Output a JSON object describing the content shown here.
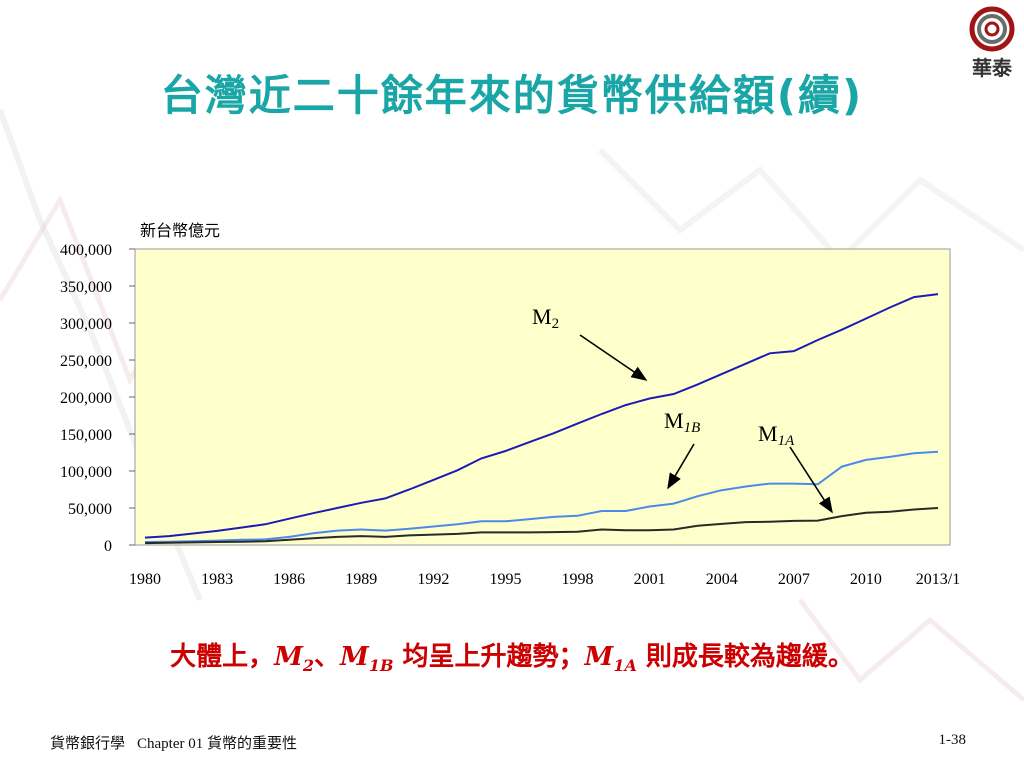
{
  "slide": {
    "title": "台灣近二十餘年來的貨幣供給額(續)",
    "logo_text": "華泰",
    "caption": {
      "part1": "大體上，",
      "m2": "M",
      "m2_sub": "2",
      "sep": "、",
      "m1b": "M",
      "m1b_sub": "1B",
      "part2": " 均呈上升趨勢；",
      "m1a": "M",
      "m1a_sub": "1A",
      "part3": " 則成長較為趨緩。"
    },
    "footer": {
      "book": "貨幣銀行學",
      "chapter": "Chapter 01 貨幣的重要性",
      "page": "1-38"
    },
    "colors": {
      "title": "#1aa6a6",
      "caption": "#cc0000",
      "plot_bg": "#ffffcc",
      "m2": "#1c1cb4",
      "m1b": "#4a8ae8",
      "m1a": "#2a2a2a"
    }
  },
  "chart_data": {
    "type": "line",
    "ylabel": "新台幣億元",
    "ylim": [
      0,
      400000
    ],
    "xlim": [
      1980,
      2013
    ],
    "yticks": [
      0,
      50000,
      100000,
      150000,
      200000,
      250000,
      300000,
      350000,
      400000
    ],
    "ytick_labels": [
      "0",
      "50,000",
      "100,000",
      "150,000",
      "200,000",
      "250,000",
      "300,000",
      "350,000",
      "400,000"
    ],
    "xticks": [
      1980,
      1983,
      1986,
      1989,
      1992,
      1995,
      1998,
      2001,
      2004,
      2007,
      2010,
      2013
    ],
    "xtick_labels": [
      "1980",
      "1983",
      "1986",
      "1989",
      "1992",
      "1995",
      "1998",
      "2001",
      "2004",
      "2007",
      "2010",
      "2013/1"
    ],
    "grid": false,
    "x": [
      1980,
      1981,
      1982,
      1983,
      1984,
      1985,
      1986,
      1987,
      1988,
      1989,
      1990,
      1991,
      1992,
      1993,
      1994,
      1995,
      1996,
      1997,
      1998,
      1999,
      2000,
      2001,
      2002,
      2003,
      2004,
      2005,
      2006,
      2007,
      2008,
      2009,
      2010,
      2011,
      2012,
      2013
    ],
    "series": [
      {
        "name": "M2",
        "label_main": "M",
        "label_sub": "2",
        "values": [
          10000,
          12000,
          15500,
          19000,
          23500,
          28000,
          35500,
          43000,
          50000,
          57000,
          63000,
          75000,
          88000,
          101000,
          117000,
          127000,
          139000,
          151000,
          164000,
          177000,
          189000,
          198000,
          204000,
          217000,
          231000,
          245000,
          259000,
          262000,
          277000,
          291000,
          306000,
          321000,
          335000,
          339000
        ]
      },
      {
        "name": "M1B",
        "label_main": "M",
        "label_sub": "1B",
        "values": [
          4000,
          4500,
          5000,
          6000,
          7000,
          7500,
          11000,
          16000,
          19500,
          21000,
          19500,
          22000,
          25000,
          28000,
          32000,
          32000,
          35000,
          38000,
          39500,
          46000,
          46000,
          52000,
          56000,
          66000,
          74000,
          79000,
          83000,
          83000,
          82000,
          106000,
          115000,
          119000,
          124000,
          126000
        ]
      },
      {
        "name": "M1A",
        "label_main": "M",
        "label_sub": "1A",
        "values": [
          2500,
          3000,
          3500,
          4000,
          4500,
          5000,
          7000,
          9000,
          11000,
          12000,
          11000,
          13000,
          14000,
          15000,
          17000,
          17000,
          17000,
          17500,
          18000,
          21000,
          20000,
          20000,
          21000,
          26000,
          28500,
          31000,
          31500,
          32500,
          33000,
          39000,
          43500,
          45000,
          48000,
          50000
        ]
      }
    ]
  }
}
